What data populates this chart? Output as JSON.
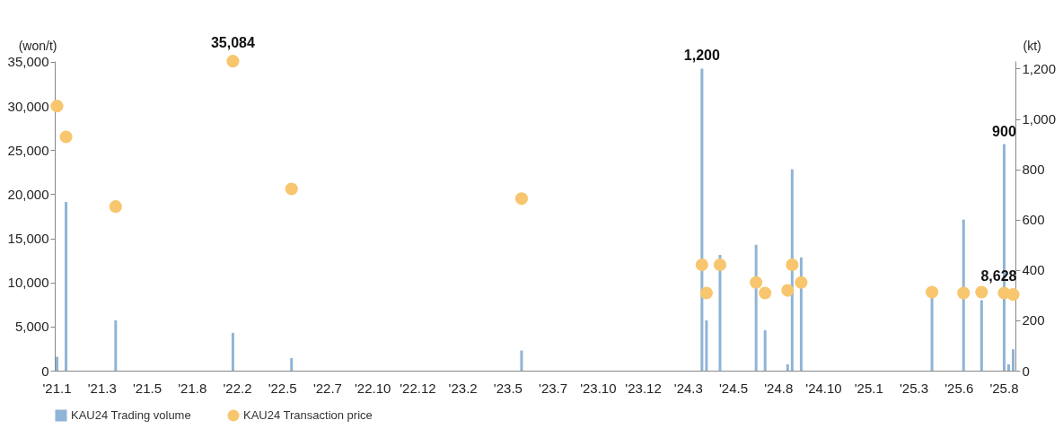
{
  "chart_data": {
    "type": "bar",
    "ylabel": "(won/t)",
    "y2label": "(kt)",
    "categories": [
      "'21.1",
      null,
      null,
      null,
      null,
      null,
      null,
      null,
      null,
      null,
      "'21.3",
      null,
      null,
      null,
      null,
      null,
      null,
      null,
      null,
      null,
      "'21.5",
      null,
      null,
      null,
      null,
      null,
      null,
      null,
      null,
      null,
      "'21.8",
      null,
      null,
      null,
      null,
      null,
      null,
      null,
      null,
      null,
      "'22.2",
      null,
      null,
      null,
      null,
      null,
      null,
      null,
      null,
      null,
      "'22.5",
      null,
      null,
      null,
      null,
      null,
      null,
      null,
      null,
      null,
      "'22.7",
      null,
      null,
      null,
      null,
      null,
      null,
      null,
      null,
      null,
      "'22.10",
      null,
      null,
      null,
      null,
      null,
      null,
      null,
      null,
      null,
      "'22.12",
      null,
      null,
      null,
      null,
      null,
      null,
      null,
      null,
      null,
      "'23.2",
      null,
      null,
      null,
      null,
      null,
      null,
      null,
      null,
      null,
      "'23.5",
      null,
      null,
      null,
      null,
      null,
      null,
      null,
      null,
      null,
      "'23.7",
      null,
      null,
      null,
      null,
      null,
      null,
      null,
      null,
      null,
      "'23.10",
      null,
      null,
      null,
      null,
      null,
      null,
      null,
      null,
      null,
      "'23.12",
      null,
      null,
      null,
      null,
      null,
      null,
      null,
      null,
      null,
      "'24.3",
      null,
      null,
      null,
      null,
      null,
      null,
      null,
      null,
      null,
      "'24.5",
      null,
      null,
      null,
      null,
      null,
      null,
      null,
      null,
      null,
      "'24.8",
      null,
      null,
      null,
      null,
      null,
      null,
      null,
      null,
      null,
      "'24.10",
      null,
      null,
      null,
      null,
      null,
      null,
      null,
      null,
      null,
      "'25.1",
      null,
      null,
      null,
      null,
      null,
      null,
      null,
      null,
      null,
      "'25.3",
      null,
      null,
      null,
      null,
      null,
      null,
      null,
      null,
      null,
      "'25.6",
      null,
      null,
      null,
      null,
      null,
      null,
      null,
      null,
      null,
      "'25.8",
      null,
      null
    ],
    "ylim": [
      0,
      35100
    ],
    "yticks": [
      0,
      {
        "value": 5000,
        "label": "5,000"
      },
      {
        "value": 10000,
        "label": "10,000"
      },
      {
        "value": 15000,
        "label": "15,000"
      },
      {
        "value": 20000,
        "label": "20,000"
      },
      {
        "value": 25000,
        "label": "25,000"
      },
      {
        "value": 30000,
        "label": "30,000"
      },
      {
        "value": 35000,
        "label": "35,000"
      }
    ],
    "y2lim": [
      0,
      1230
    ],
    "y2ticks": [
      0,
      200,
      400,
      600,
      800,
      {
        "value": 1000,
        "label": "1,000"
      },
      {
        "value": 1200,
        "label": "1,200"
      }
    ],
    "legend": "bottom",
    "marker": "circle",
    "series": [
      {
        "name": "KAU24 Trading volume",
        "axis": "y2",
        "color": "#8fb4d6",
        "values": [
          55,
          null,
          670,
          null,
          null,
          null,
          null,
          null,
          null,
          null,
          null,
          null,
          null,
          200,
          null,
          null,
          null,
          null,
          null,
          null,
          null,
          null,
          null,
          null,
          null,
          null,
          null,
          null,
          null,
          null,
          null,
          null,
          null,
          null,
          null,
          null,
          null,
          null,
          null,
          150,
          null,
          null,
          null,
          null,
          null,
          null,
          null,
          null,
          null,
          null,
          null,
          null,
          50,
          null,
          null,
          null,
          null,
          null,
          null,
          null,
          null,
          null,
          null,
          null,
          null,
          null,
          null,
          null,
          null,
          null,
          null,
          null,
          null,
          null,
          null,
          null,
          null,
          null,
          null,
          null,
          null,
          null,
          null,
          null,
          null,
          null,
          null,
          null,
          null,
          null,
          null,
          null,
          null,
          null,
          null,
          null,
          null,
          null,
          null,
          null,
          null,
          null,
          null,
          80,
          null,
          null,
          null,
          null,
          null,
          null,
          null,
          null,
          null,
          null,
          null,
          null,
          null,
          null,
          null,
          null,
          null,
          null,
          null,
          null,
          null,
          null,
          null,
          null,
          null,
          null,
          null,
          null,
          null,
          null,
          null,
          null,
          null,
          null,
          null,
          null,
          null,
          null,
          null,
          1200,
          200,
          null,
          null,
          460,
          null,
          null,
          null,
          null,
          null,
          null,
          null,
          500,
          null,
          160,
          null,
          null,
          null,
          null,
          25,
          800,
          null,
          450,
          null,
          null,
          null,
          null,
          null,
          null,
          null,
          null,
          null,
          null,
          null,
          null,
          null,
          null,
          null,
          null,
          null,
          null,
          null,
          null,
          null,
          null,
          null,
          null,
          null,
          null,
          null,
          null,
          300,
          null,
          null,
          null,
          null,
          null,
          null,
          600,
          null,
          null,
          null,
          280,
          null,
          null,
          null,
          null,
          900,
          25,
          85
        ],
        "value_labels": [
          null,
          null,
          null,
          null,
          null,
          null,
          null,
          null,
          null,
          null,
          null,
          null,
          null,
          null,
          null,
          null,
          null,
          null,
          null,
          null,
          null,
          null,
          null,
          null,
          null,
          null,
          null,
          null,
          null,
          null,
          null,
          null,
          null,
          null,
          null,
          null,
          null,
          null,
          null,
          null,
          null,
          null,
          null,
          null,
          null,
          null,
          null,
          null,
          null,
          null,
          null,
          null,
          null,
          null,
          null,
          null,
          null,
          null,
          null,
          null,
          null,
          null,
          null,
          null,
          null,
          null,
          null,
          null,
          null,
          null,
          null,
          null,
          null,
          null,
          null,
          null,
          null,
          null,
          null,
          null,
          null,
          null,
          null,
          null,
          null,
          null,
          null,
          null,
          null,
          null,
          null,
          null,
          null,
          null,
          null,
          null,
          null,
          null,
          null,
          null,
          null,
          null,
          null,
          null,
          null,
          null,
          null,
          null,
          null,
          null,
          null,
          null,
          null,
          null,
          null,
          null,
          null,
          null,
          null,
          null,
          null,
          null,
          null,
          null,
          null,
          null,
          null,
          null,
          null,
          null,
          null,
          null,
          null,
          null,
          null,
          null,
          null,
          null,
          null,
          null,
          null,
          null,
          null,
          "1,200",
          null,
          null,
          null,
          null,
          null,
          null,
          null,
          null,
          null,
          null,
          null,
          null,
          null,
          null,
          null,
          null,
          null,
          null,
          null,
          null,
          null,
          null,
          null,
          null,
          null,
          null,
          null,
          null,
          null,
          null,
          null,
          null,
          null,
          null,
          null,
          null,
          null,
          null,
          null,
          null,
          null,
          null,
          null,
          null,
          null,
          null,
          null,
          null,
          null,
          null,
          null,
          null,
          null,
          null,
          null,
          null,
          null,
          null,
          null,
          null,
          null,
          null,
          null,
          null,
          null,
          null,
          "900",
          null,
          null
        ]
      },
      {
        "name": "KAU24 Transaction price",
        "type": "scatter",
        "color": "#f7c66e",
        "values": [
          30000,
          null,
          26500,
          null,
          null,
          null,
          null,
          null,
          null,
          null,
          null,
          null,
          null,
          18600,
          null,
          null,
          null,
          null,
          null,
          null,
          null,
          null,
          null,
          null,
          null,
          null,
          null,
          null,
          null,
          null,
          null,
          null,
          null,
          null,
          null,
          null,
          null,
          null,
          null,
          35084,
          null,
          null,
          null,
          null,
          null,
          null,
          null,
          null,
          null,
          null,
          null,
          null,
          20600,
          null,
          null,
          null,
          null,
          null,
          null,
          null,
          null,
          null,
          null,
          null,
          null,
          null,
          null,
          null,
          null,
          null,
          null,
          null,
          null,
          null,
          null,
          null,
          null,
          null,
          null,
          null,
          null,
          null,
          null,
          null,
          null,
          null,
          null,
          null,
          null,
          null,
          null,
          null,
          null,
          null,
          null,
          null,
          null,
          null,
          null,
          null,
          null,
          null,
          null,
          19500,
          null,
          null,
          null,
          null,
          null,
          null,
          null,
          null,
          null,
          null,
          null,
          null,
          null,
          null,
          null,
          null,
          null,
          null,
          null,
          null,
          null,
          null,
          null,
          null,
          null,
          null,
          null,
          null,
          null,
          null,
          null,
          null,
          null,
          null,
          null,
          null,
          null,
          null,
          null,
          12000,
          8800,
          null,
          null,
          12000,
          null,
          null,
          null,
          null,
          null,
          null,
          null,
          10000,
          null,
          8800,
          null,
          null,
          null,
          null,
          9100,
          12000,
          null,
          10000,
          null,
          null,
          null,
          null,
          null,
          null,
          null,
          null,
          null,
          null,
          null,
          null,
          null,
          null,
          null,
          null,
          null,
          null,
          null,
          null,
          null,
          null,
          null,
          null,
          null,
          null,
          null,
          null,
          8900,
          null,
          null,
          null,
          null,
          null,
          null,
          8800,
          null,
          null,
          null,
          8900,
          null,
          null,
          null,
          null,
          8800,
          null,
          8628
        ],
        "value_labels": [
          null,
          null,
          null,
          null,
          null,
          null,
          null,
          null,
          null,
          null,
          null,
          null,
          null,
          null,
          null,
          null,
          null,
          null,
          null,
          null,
          null,
          null,
          null,
          null,
          null,
          null,
          null,
          null,
          null,
          null,
          null,
          null,
          null,
          null,
          null,
          null,
          null,
          null,
          null,
          "35,084",
          null,
          null,
          null,
          null,
          null,
          null,
          null,
          null,
          null,
          null,
          null,
          null,
          null,
          null,
          null,
          null,
          null,
          null,
          null,
          null,
          null,
          null,
          null,
          null,
          null,
          null,
          null,
          null,
          null,
          null,
          null,
          null,
          null,
          null,
          null,
          null,
          null,
          null,
          null,
          null,
          null,
          null,
          null,
          null,
          null,
          null,
          null,
          null,
          null,
          null,
          null,
          null,
          null,
          null,
          null,
          null,
          null,
          null,
          null,
          null,
          null,
          null,
          null,
          null,
          null,
          null,
          null,
          null,
          null,
          null,
          null,
          null,
          null,
          null,
          null,
          null,
          null,
          null,
          null,
          null,
          null,
          null,
          null,
          null,
          null,
          null,
          null,
          null,
          null,
          null,
          null,
          null,
          null,
          null,
          null,
          null,
          null,
          null,
          null,
          null,
          null,
          null,
          null,
          null,
          null,
          null,
          null,
          null,
          null,
          null,
          null,
          null,
          null,
          null,
          null,
          null,
          null,
          null,
          null,
          null,
          null,
          null,
          null,
          null,
          null,
          null,
          null,
          null,
          null,
          null,
          null,
          null,
          null,
          null,
          null,
          null,
          null,
          null,
          null,
          null,
          null,
          null,
          null,
          null,
          null,
          null,
          null,
          null,
          null,
          null,
          null,
          null,
          null,
          null,
          null,
          null,
          null,
          null,
          null,
          null,
          null,
          null,
          null,
          null,
          null,
          null,
          null,
          null,
          null,
          null,
          null,
          null,
          "8,628"
        ]
      }
    ]
  }
}
